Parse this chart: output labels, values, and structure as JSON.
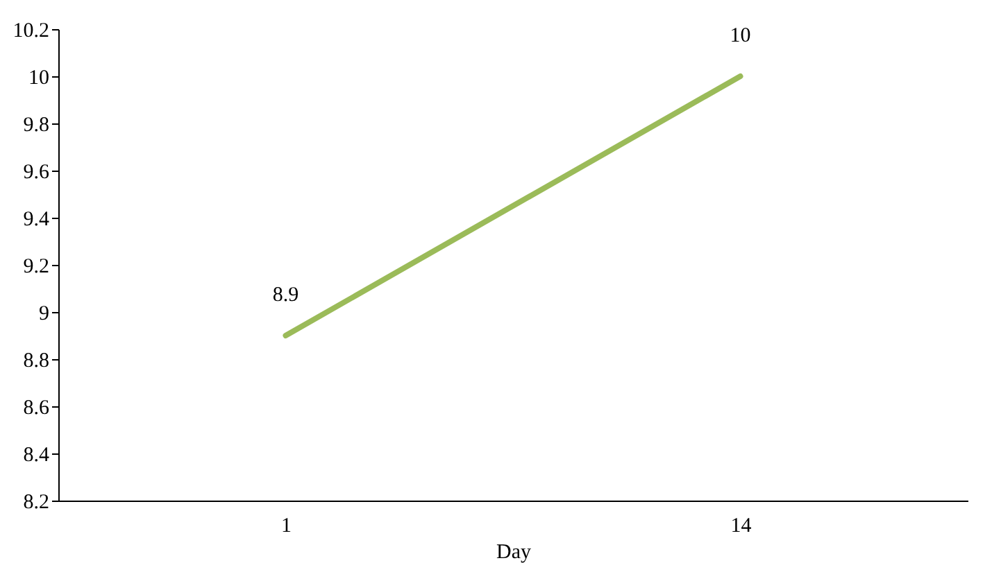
{
  "chart_data": {
    "type": "line",
    "xlabel": "Day",
    "categories": [
      "1",
      "14"
    ],
    "series": [
      {
        "color": "#9bbb59",
        "values": [
          8.9,
          10
        ]
      }
    ],
    "ylim": [
      8.2,
      10.2
    ],
    "yticks": [
      8.2,
      8.4,
      8.6,
      8.8,
      9,
      9.2,
      9.4,
      9.6,
      9.8,
      10,
      10.2
    ],
    "grid": false,
    "legend": false,
    "marker": "none",
    "data_labels": true
  }
}
